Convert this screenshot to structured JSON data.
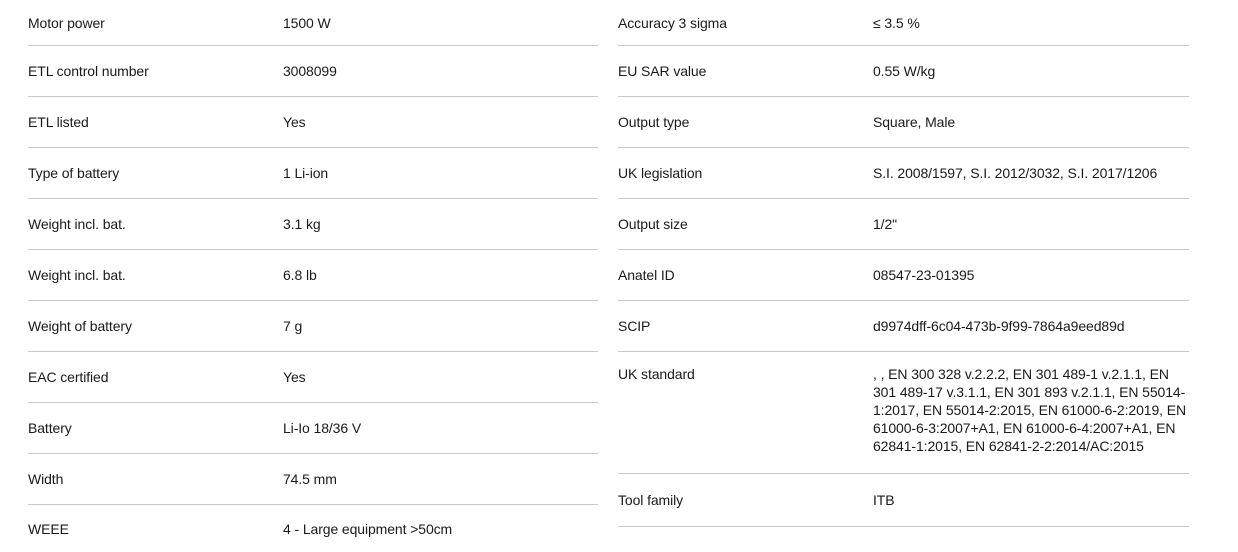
{
  "colors": {
    "text": "#1a1a1a",
    "divider": "#c9c9c9",
    "background": "#ffffff"
  },
  "tables": {
    "left": {
      "rows": [
        {
          "label": "Motor power",
          "value": "1500 W"
        },
        {
          "label": "ETL control number",
          "value": "3008099"
        },
        {
          "label": "ETL listed",
          "value": "Yes"
        },
        {
          "label": "Type of battery",
          "value": "1 Li-ion"
        },
        {
          "label": "Weight incl. bat.",
          "value": "3.1 kg"
        },
        {
          "label": "Weight incl. bat.",
          "value": "6.8 lb"
        },
        {
          "label": "Weight of battery",
          "value": "7 g"
        },
        {
          "label": "EAC certified",
          "value": "Yes"
        },
        {
          "label": "Battery",
          "value": "Li-Io 18/36 V"
        },
        {
          "label": "Width",
          "value": "74.5 mm"
        },
        {
          "label": "WEEE",
          "value": "4 - Large equipment >50cm"
        }
      ]
    },
    "right": {
      "rows": [
        {
          "label": "Accuracy 3 sigma",
          "value": "≤ 3.5 %"
        },
        {
          "label": "EU SAR value",
          "value": "0.55 W/kg"
        },
        {
          "label": "Output type",
          "value": "Square, Male"
        },
        {
          "label": "UK legislation",
          "value": "S.I. 2008/1597, S.I. 2012/3032, S.I. 2017/1206"
        },
        {
          "label": "Output size",
          "value": "1/2\""
        },
        {
          "label": "Anatel ID",
          "value": "08547-23-01395"
        },
        {
          "label": "SCIP",
          "value": "d9974dff-6c04-473b-9f99-7864a9eed89d"
        },
        {
          "label": "UK standard",
          "value": ", , EN 300 328 v.2.2.2, EN 301 489-1 v.2.1.1, EN 301 489-17 v.3.1.1, EN 301 893 v.2.1.1, EN 55014-1:2017, EN 55014-2:2015, EN 61000-6-2:2019, EN 61000-6-3:2007+A1, EN 61000-6-4:2007+A1, EN 62841-1:2015, EN 62841-2-2:2014/AC:2015"
        },
        {
          "label": "Tool family",
          "value": "ITB"
        }
      ]
    }
  }
}
